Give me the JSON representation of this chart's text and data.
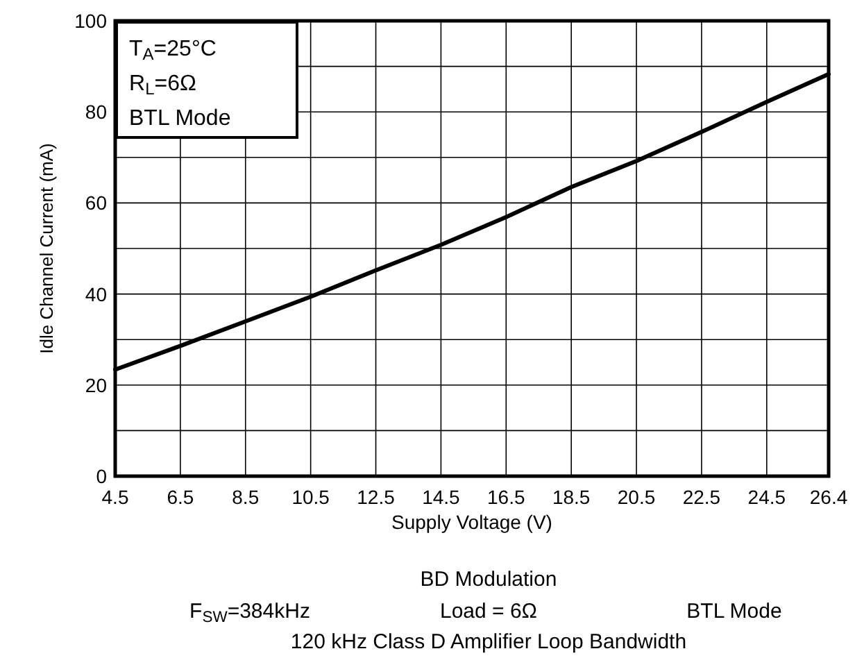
{
  "chart_data": {
    "type": "line",
    "xlabel": "Supply Voltage (V)",
    "ylabel": "Idle Channel Current (mA)",
    "x": [
      4.5,
      6.5,
      8.5,
      10.5,
      12.5,
      14.5,
      16.5,
      18.5,
      20.5,
      22.5,
      24.5,
      26.4
    ],
    "series": [
      {
        "color": "#000000",
        "values": [
          23.4,
          28.6,
          34,
          39.4,
          45.2,
          50.8,
          56.9,
          63.5,
          69.2,
          75.6,
          82.2,
          88.3
        ]
      }
    ],
    "xlim": [
      4.5,
      26.4
    ],
    "xticks": [
      4.5,
      6.5,
      8.5,
      10.5,
      12.5,
      14.5,
      16.5,
      18.5,
      20.5,
      22.5,
      24.5,
      26.4
    ],
    "ylim": [
      0,
      100
    ],
    "yticks": [
      {
        "value": 0,
        "label": "0"
      },
      {
        "value": 10,
        "label": null
      },
      {
        "value": 20,
        "label": "20"
      },
      {
        "value": 30,
        "label": null
      },
      {
        "value": 40,
        "label": "40"
      },
      {
        "value": 50,
        "label": null
      },
      {
        "value": 60,
        "label": "60"
      },
      {
        "value": 70,
        "label": null
      },
      {
        "value": 80,
        "label": "80"
      },
      {
        "value": 90,
        "label": null
      },
      {
        "value": 100,
        "label": "100"
      }
    ],
    "grid": true,
    "marker": "none",
    "line_style": "solid",
    "annotations": [
      "T$_{A}$=25°C",
      "R$_{L}$=6Ω",
      "BTL Mode",
      "BD Modulation",
      "F$_{SW}$=384kHz",
      "Load = 6Ω",
      "BTL Mode",
      "120 kHz Class D Amplifier Loop Bandwidth"
    ]
  }
}
